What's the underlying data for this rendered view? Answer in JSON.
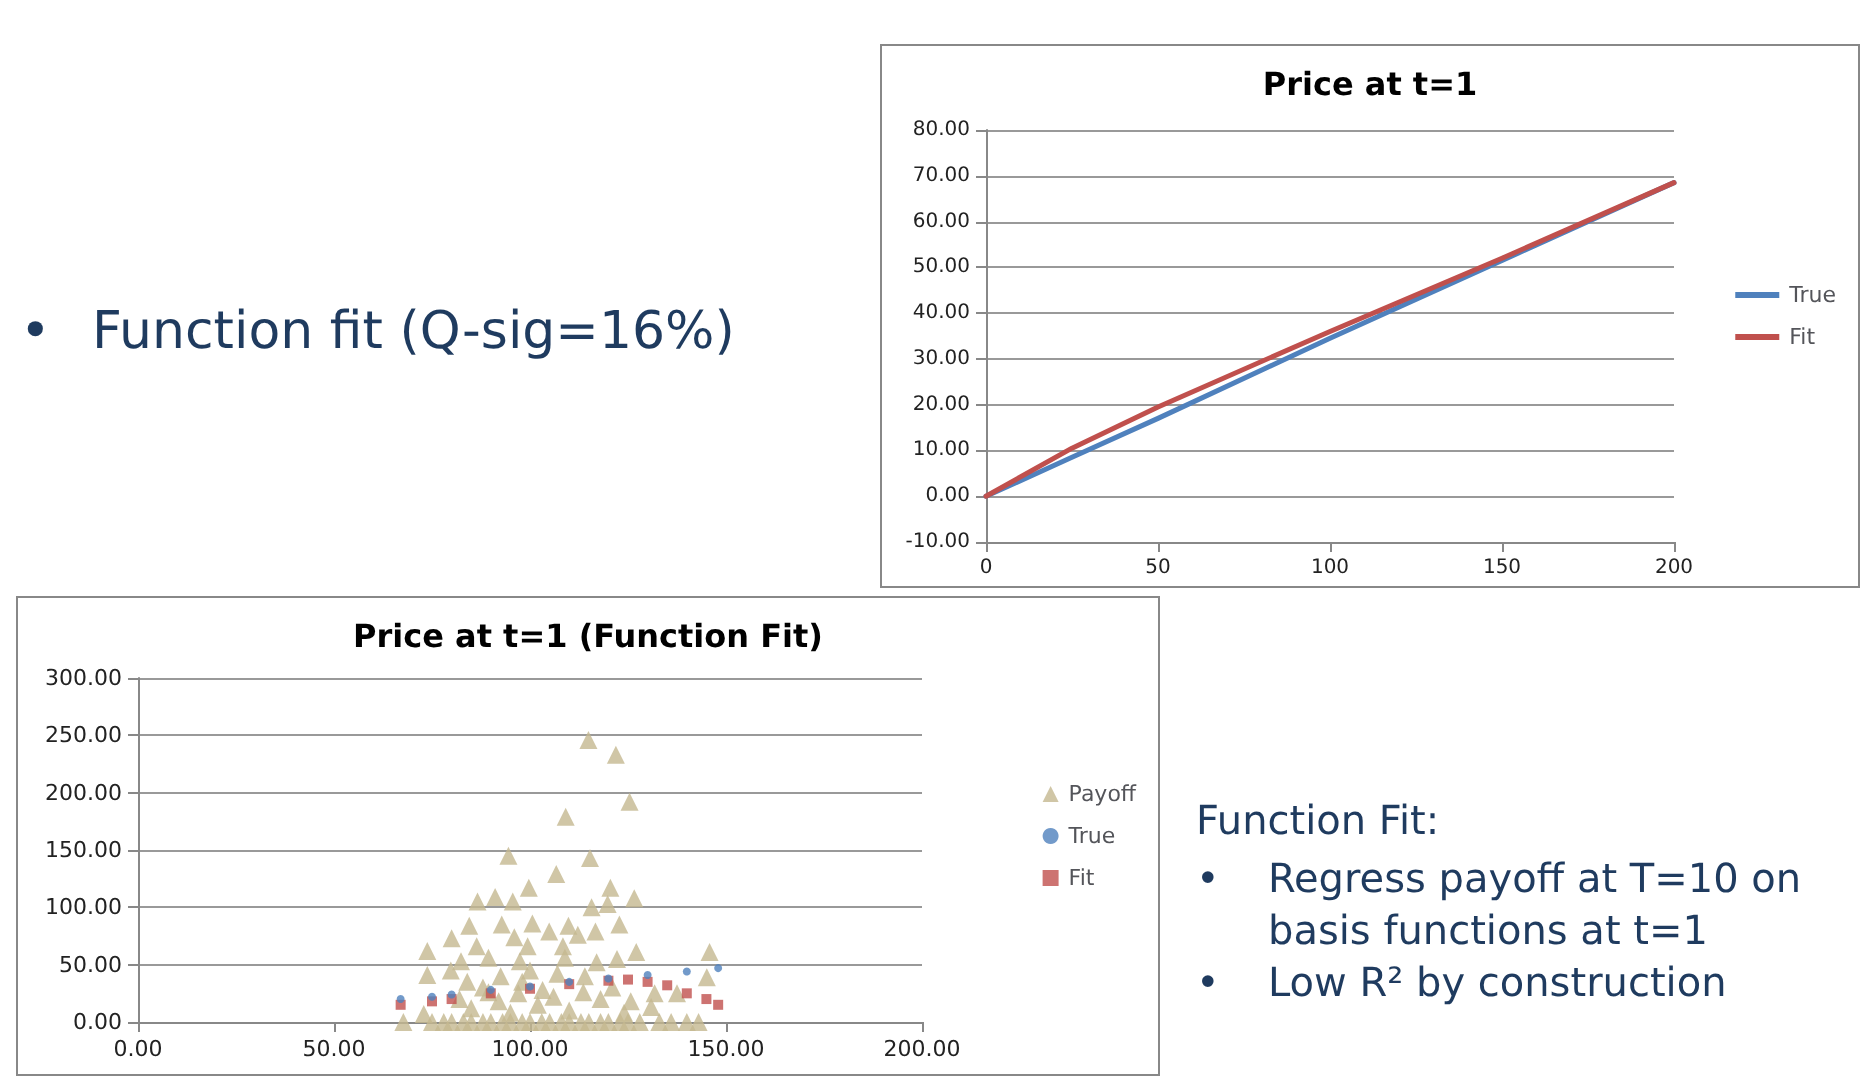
{
  "chart_data": [
    {
      "type": "line",
      "title": "Price at t=1",
      "x": [
        0,
        25,
        50,
        100,
        150,
        200
      ],
      "series": [
        {
          "name": "True",
          "color": "#4f81bd",
          "values": [
            0,
            8.5,
            17,
            34.5,
            51.5,
            68.5
          ]
        },
        {
          "name": "Fit",
          "color": "#c0504d",
          "values": [
            0,
            10.5,
            19.5,
            36,
            52,
            68.5
          ]
        }
      ],
      "xlim": [
        0,
        200
      ],
      "xticks": [
        0,
        50,
        100,
        150,
        200
      ],
      "ylim": [
        -10,
        80
      ],
      "yticks": [
        {
          "value": -10,
          "label": "-10.00"
        },
        {
          "value": 0,
          "label": "0.00"
        },
        {
          "value": 10,
          "label": "10.00"
        },
        {
          "value": 20,
          "label": "20.00"
        },
        {
          "value": 30,
          "label": "30.00"
        },
        {
          "value": 40,
          "label": "40.00"
        },
        {
          "value": 50,
          "label": "50.00"
        },
        {
          "value": 60,
          "label": "60.00"
        },
        {
          "value": 70,
          "label": "70.00"
        },
        {
          "value": 80,
          "label": "80.00"
        }
      ],
      "grid": "y",
      "legend": "right",
      "marker": "none"
    },
    {
      "type": "other",
      "annotations": [
        "•\tFunction fit (Q-sig=16%)"
      ]
    },
    {
      "type": "scatter",
      "title": "Price at t=1 (Function Fit)",
      "series": [
        {
          "name": "Payoff",
          "color": "#c4b890",
          "marker": "triangle",
          "x": [
            114.9,
            121.9,
            125.4,
            109.1,
            94.5,
            115.3,
            106.7,
            99.7,
            120.5,
            126.6,
            86.6,
            91.1,
            95.6,
            115.7,
            119.8,
            84.5,
            92.8,
            100.6,
            109.8,
            122.8,
            80,
            96,
            104.9,
            112.2,
            116.7,
            73.8,
            86.4,
            99.4,
            108.4,
            127.1,
            145.8,
            82.4,
            89.4,
            97.4,
            108.9,
            117,
            122.2,
            73.8,
            79.8,
            92.5,
            145.1,
            131.8,
            137.5,
            89.4,
            103.2,
            113.6,
            125.7,
            130.9,
            72.9,
            67.7,
            75,
            78,
            80,
            83,
            85,
            88,
            90,
            93,
            95,
            98,
            100,
            103,
            105,
            108,
            110,
            113,
            115,
            118,
            120,
            123,
            125,
            128,
            133,
            136,
            140,
            143,
            82,
            85,
            88,
            92,
            95,
            98,
            102,
            106,
            110,
            114,
            118,
            121,
            124,
            100,
            107,
            97,
            84
          ],
          "values": [
            246,
            233,
            192,
            179,
            145,
            143,
            129,
            117,
            117,
            108,
            105,
            109,
            105,
            100,
            103,
            84,
            85,
            86,
            84,
            85,
            73,
            74,
            79,
            76,
            79,
            62,
            66,
            66,
            66,
            61,
            61,
            53,
            56,
            53,
            56,
            52,
            55,
            41,
            45,
            40,
            39,
            25,
            25,
            26,
            28,
            26,
            18,
            13,
            7,
            0,
            0,
            0,
            0,
            0,
            0,
            0,
            0,
            0,
            0,
            0,
            0,
            0,
            0,
            0,
            0,
            0,
            0,
            0,
            0,
            0,
            0,
            0,
            0,
            0,
            0,
            0,
            20,
            12,
            30,
            18,
            8,
            35,
            15,
            22,
            10,
            40,
            20,
            30,
            8,
            45,
            42,
            25,
            35
          ]
        },
        {
          "name": "True",
          "color": "#4f81bd",
          "marker": "circle",
          "x": [
            67,
            75,
            80,
            90,
            100,
            110,
            120,
            130,
            140,
            148
          ],
          "values": [
            20,
            22,
            24,
            28,
            31,
            35,
            38,
            41,
            44,
            47
          ]
        },
        {
          "name": "Fit",
          "color": "#c0504d",
          "marker": "square",
          "x": [
            67,
            75,
            80,
            90,
            100,
            110,
            120,
            125,
            130,
            135,
            140,
            145,
            148
          ],
          "values": [
            15,
            18,
            20,
            25,
            29,
            33,
            36,
            37,
            35,
            32,
            25,
            20,
            15
          ]
        }
      ],
      "xlim": [
        0,
        200
      ],
      "xticks": [
        {
          "value": 0,
          "label": "0.00"
        },
        {
          "value": 50,
          "label": "50.00"
        },
        {
          "value": 100,
          "label": "100.00"
        },
        {
          "value": 150,
          "label": "150.00"
        },
        {
          "value": 200,
          "label": "200.00"
        }
      ],
      "ylim": [
        0,
        300
      ],
      "yticks": [
        {
          "value": 0,
          "label": "0.00"
        },
        {
          "value": 50,
          "label": "50.00"
        },
        {
          "value": 100,
          "label": "100.00"
        },
        {
          "value": 150,
          "label": "150.00"
        },
        {
          "value": 200,
          "label": "200.00"
        },
        {
          "value": 250,
          "label": "250.00"
        },
        {
          "value": 300,
          "label": "300.00"
        }
      ],
      "grid": "y",
      "legend": "right"
    },
    {
      "type": "other",
      "title": "Function Fit:",
      "annotations": [
        "•\tRegress payoff at T=10 on basis functions at t=1",
        "•\tLow R² by construction"
      ]
    }
  ]
}
